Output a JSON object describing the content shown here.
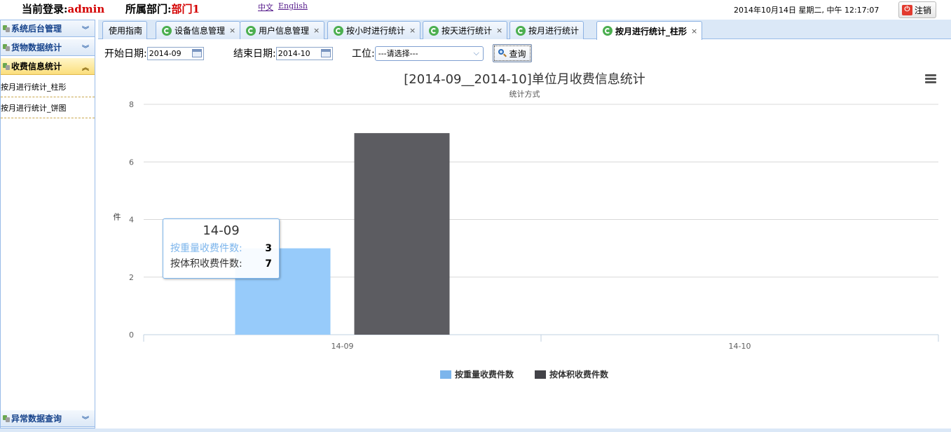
{
  "header": {
    "login_label": "当前登录:",
    "login_user": "admin",
    "dept_label": "所属部门:",
    "dept_value": "部门1",
    "lang_zh": "中文",
    "lang_en": "English",
    "datetime": "2014年10月14日 星期二, 中午 12:17:07",
    "logout_label": "注销"
  },
  "sidebar": {
    "sections": [
      {
        "label": "系统后台管理",
        "state": "collapsed"
      },
      {
        "label": "货物数据统计",
        "state": "collapsed"
      },
      {
        "label": "收费信息统计",
        "state": "expanded"
      },
      {
        "label": "异常数据查询",
        "state": "collapsed"
      }
    ],
    "items": [
      {
        "label": "按月进行统计_柱形"
      },
      {
        "label": "按月进行统计_饼图"
      }
    ]
  },
  "tabs": [
    {
      "label": "使用指南",
      "icon": "none",
      "closable": false,
      "active": false
    },
    {
      "label": "设备信息管理",
      "icon": "refresh-icon",
      "closable": true,
      "active": false
    },
    {
      "label": "用户信息管理",
      "icon": "refresh-icon",
      "closable": true,
      "active": false
    },
    {
      "label": "按小时进行统计",
      "icon": "refresh-icon",
      "closable": true,
      "active": false
    },
    {
      "label": "按天进行统计",
      "icon": "refresh-icon",
      "closable": true,
      "active": false
    },
    {
      "label": "按月进行统计",
      "icon": "refresh-icon",
      "closable": true,
      "active": false
    },
    {
      "label": "按月进行统计_柱形",
      "icon": "refresh-icon",
      "closable": true,
      "active": true
    }
  ],
  "filter": {
    "start_label": "开始日期:",
    "start_value": "2014-09",
    "end_label": "结束日期:",
    "end_value": "2014-10",
    "station_label": "工位:",
    "station_value": "---请选择---",
    "query_label": "查询"
  },
  "tooltip": {
    "title": "14-09",
    "rows": [
      {
        "label": "按重量收费件数:",
        "value": "3"
      },
      {
        "label": "按体积收费件数:",
        "value": "7"
      }
    ]
  },
  "colors": {
    "series1": "#97cbfa",
    "series2": "#5c5c61",
    "legend1": "#7cb5ec",
    "legend2": "#434348"
  },
  "chart_data": {
    "type": "bar",
    "title": "[2014-09__2014-10]单位月收费信息统计",
    "subtitle": "统计方式",
    "ylabel": "件",
    "xlabel": "",
    "categories": [
      "14-09",
      "14-10"
    ],
    "series": [
      {
        "name": "按重量收费件数",
        "values": [
          3,
          null
        ]
      },
      {
        "name": "按体积收费件数",
        "values": [
          7,
          null
        ]
      }
    ],
    "ylim": [
      0,
      8
    ],
    "yticks": [
      0,
      2,
      4,
      6,
      8
    ],
    "grid": true,
    "legend_position": "bottom"
  }
}
